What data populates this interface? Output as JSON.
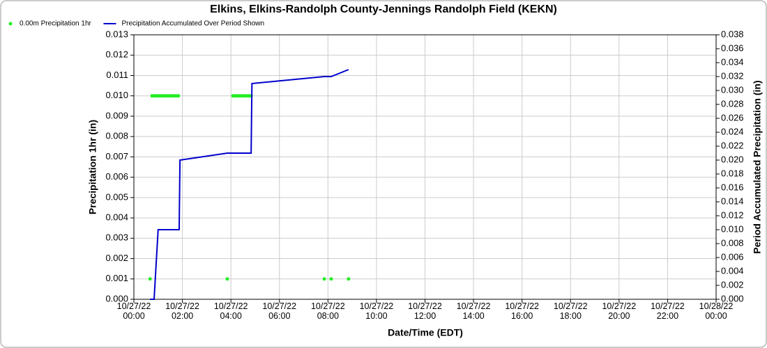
{
  "chart_data": {
    "type": "combo",
    "title": "Elkins, Elkins-Randolph County-Jennings Randolph Field (KEKN)",
    "x_label": "Date/Time (EDT)",
    "y_label": "Precipitation 1hr (in)",
    "y2_label": "Period Accumulated Precipitation (in)",
    "grid": true,
    "legend": "top-left",
    "xlim": [
      "10/27/22 00:00",
      "10/28/22 00:00"
    ],
    "xticks": [
      "10/27/22 00:00",
      "10/27/22 02:00",
      "10/27/22 04:00",
      "10/27/22 06:00",
      "10/27/22 08:00",
      "10/27/22 10:00",
      "10/27/22 12:00",
      "10/27/22 14:00",
      "10/27/22 16:00",
      "10/27/22 18:00",
      "10/27/22 20:00",
      "10/27/22 22:00",
      "10/28/22 00:00"
    ],
    "ylim": [
      0,
      0.013
    ],
    "yticks": [
      {
        "value": 0,
        "label": "0.000"
      },
      {
        "value": 0.001,
        "label": "0.001"
      },
      {
        "value": 0.002,
        "label": "0.002"
      },
      {
        "value": 0.003,
        "label": "0.003"
      },
      {
        "value": 0.004,
        "label": "0.004"
      },
      {
        "value": 0.005,
        "label": "0.005"
      },
      {
        "value": 0.006,
        "label": "0.006"
      },
      {
        "value": 0.007,
        "label": "0.007"
      },
      {
        "value": 0.008,
        "label": "0.008"
      },
      {
        "value": 0.009,
        "label": "0.009"
      },
      {
        "value": 0.01,
        "label": "0.010"
      },
      {
        "value": 0.011,
        "label": "0.011"
      },
      {
        "value": 0.012,
        "label": "0.012"
      },
      {
        "value": 0.013,
        "label": "0.013"
      }
    ],
    "y2lim": [
      0,
      0.038
    ],
    "y2ticks": [
      {
        "value": 0,
        "label": "0.000"
      },
      {
        "value": 0.002,
        "label": "0.002"
      },
      {
        "value": 0.004,
        "label": "0.004"
      },
      {
        "value": 0.006,
        "label": "0.006"
      },
      {
        "value": 0.008,
        "label": "0.008"
      },
      {
        "value": 0.01,
        "label": "0.010"
      },
      {
        "value": 0.012,
        "label": "0.012"
      },
      {
        "value": 0.014,
        "label": "0.014"
      },
      {
        "value": 0.016,
        "label": "0.016"
      },
      {
        "value": 0.018,
        "label": "0.018"
      },
      {
        "value": 0.02,
        "label": "0.020"
      },
      {
        "value": 0.022,
        "label": "0.022"
      },
      {
        "value": 0.024,
        "label": "0.024"
      },
      {
        "value": 0.026,
        "label": "0.026"
      },
      {
        "value": 0.028,
        "label": "0.028"
      },
      {
        "value": 0.03,
        "label": "0.030"
      },
      {
        "value": 0.032,
        "label": "0.032"
      },
      {
        "value": 0.034,
        "label": "0.034"
      },
      {
        "value": 0.036,
        "label": "0.036"
      },
      {
        "value": 0.038,
        "label": "0.038"
      }
    ],
    "series": [
      {
        "name": "0.00m Precipitation 1hr",
        "type": "scatter",
        "color": "#22ee22",
        "x": [
          "10/27/22 00:40",
          "10/27/22 00:45",
          "10/27/22 00:50",
          "10/27/22 00:55",
          "10/27/22 01:00",
          "10/27/22 01:05",
          "10/27/22 01:10",
          "10/27/22 01:15",
          "10/27/22 01:20",
          "10/27/22 01:25",
          "10/27/22 01:30",
          "10/27/22 01:35",
          "10/27/22 01:40",
          "10/27/22 01:45",
          "10/27/22 01:50",
          "10/27/22 03:51",
          "10/27/22 04:05",
          "10/27/22 04:10",
          "10/27/22 04:15",
          "10/27/22 04:20",
          "10/27/22 04:25",
          "10/27/22 04:30",
          "10/27/22 04:35",
          "10/27/22 04:40",
          "10/27/22 04:45",
          "10/27/22 04:50",
          "10/27/22 07:51",
          "10/27/22 08:08",
          "10/27/22 08:51"
        ],
        "values": [
          0.001,
          0.01,
          0.01,
          0.01,
          0.01,
          0.01,
          0.01,
          0.01,
          0.01,
          0.01,
          0.01,
          0.01,
          0.01,
          0.01,
          0.01,
          0.001,
          0.01,
          0.01,
          0.01,
          0.01,
          0.01,
          0.01,
          0.01,
          0.01,
          0.01,
          0.01,
          0.001,
          0.001,
          0.001
        ]
      },
      {
        "name": "Precipitation Accumulated Over Period Shown",
        "type": "line",
        "axis": "y2",
        "color": "#0000cc",
        "x": [
          "10/27/22 00:40",
          "10/27/22 00:50",
          "10/27/22 01:00",
          "10/27/22 01:52",
          "10/27/22 01:54",
          "10/27/22 03:51",
          "10/27/22 04:50",
          "10/27/22 04:52",
          "10/27/22 07:51",
          "10/27/22 08:08",
          "10/27/22 08:51"
        ],
        "values": [
          0,
          0,
          0.01,
          0.01,
          0.02,
          0.021,
          0.021,
          0.031,
          0.032,
          0.032,
          0.033
        ]
      }
    ]
  }
}
